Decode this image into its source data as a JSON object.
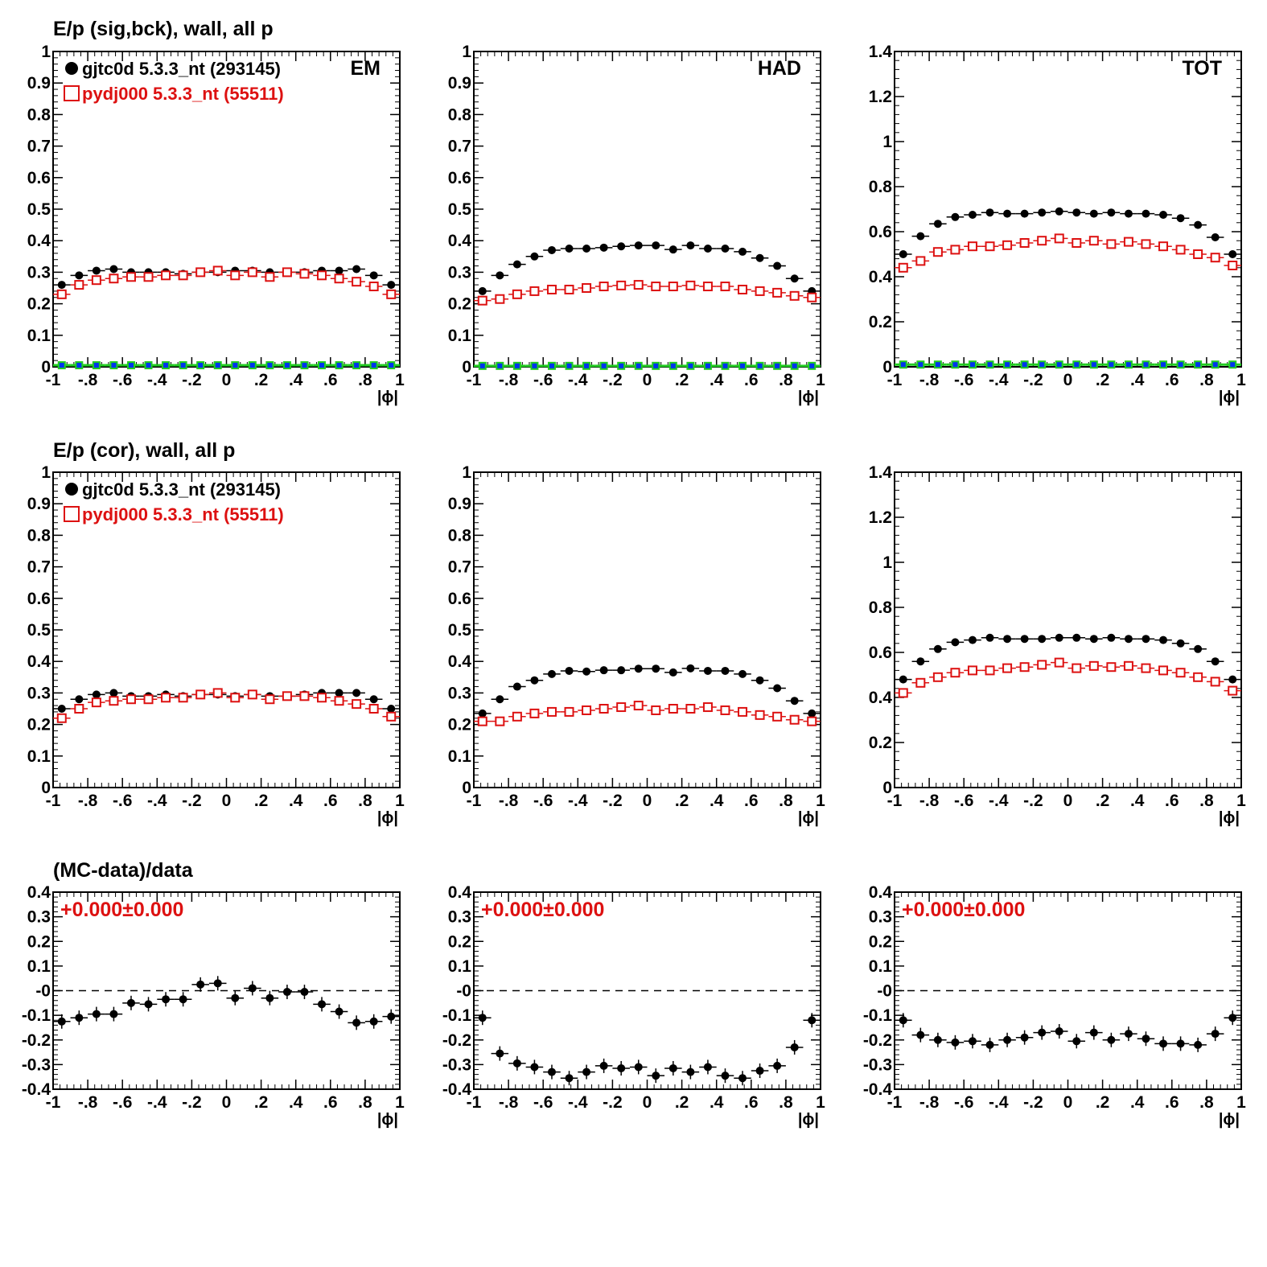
{
  "colors": {
    "data": "#000000",
    "mc": "#dd1111",
    "bkg_fill": "#0033ee",
    "bkg_edge": "#22cc22"
  },
  "rows": [
    {
      "title": "E/p (sig,bck), wall, all p"
    },
    {
      "title": "E/p (cor), wall, all p"
    },
    {
      "title": "(MC-data)/data"
    }
  ],
  "legend": {
    "data_label": "gjtc0d 5.3.3_nt (293145)",
    "mc_label": "pydj000 5.3.3_nt (55511)"
  },
  "fit_label": "+0.000±0.000",
  "xlabel": "|ϕ|",
  "chart_data": [
    {
      "type": "scatter",
      "row": 0,
      "col": 0,
      "corner": "EM",
      "legend": true,
      "xlim": [
        -1,
        1
      ],
      "ylim": [
        0,
        1
      ],
      "x": [
        -0.95,
        -0.85,
        -0.75,
        -0.65,
        -0.55,
        -0.45,
        -0.35,
        -0.25,
        -0.15,
        -0.05,
        0.05,
        0.15,
        0.25,
        0.35,
        0.45,
        0.55,
        0.65,
        0.75,
        0.85,
        0.95
      ],
      "series": [
        {
          "name": "gjtc0d 5.3.3_nt (293145)",
          "style": "data",
          "values": [
            0.26,
            0.29,
            0.305,
            0.31,
            0.3,
            0.3,
            0.3,
            0.295,
            0.3,
            0.3,
            0.305,
            0.305,
            0.3,
            0.3,
            0.3,
            0.305,
            0.305,
            0.31,
            0.29,
            0.26
          ]
        },
        {
          "name": "pydj000 5.3.3_nt (55511)",
          "style": "mc",
          "values": [
            0.23,
            0.26,
            0.275,
            0.28,
            0.285,
            0.285,
            0.29,
            0.29,
            0.3,
            0.305,
            0.29,
            0.3,
            0.285,
            0.3,
            0.295,
            0.29,
            0.28,
            0.27,
            0.255,
            0.23
          ]
        },
        {
          "style": "bkg",
          "values": [
            0.005,
            0.005,
            0.005,
            0.005,
            0.005,
            0.005,
            0.005,
            0.005,
            0.005,
            0.005,
            0.005,
            0.005,
            0.005,
            0.005,
            0.005,
            0.005,
            0.005,
            0.005,
            0.005,
            0.005
          ]
        }
      ]
    },
    {
      "type": "scatter",
      "row": 0,
      "col": 1,
      "corner": "HAD",
      "legend": false,
      "xlim": [
        -1,
        1
      ],
      "ylim": [
        0,
        1
      ],
      "x": [
        -0.95,
        -0.85,
        -0.75,
        -0.65,
        -0.55,
        -0.45,
        -0.35,
        -0.25,
        -0.15,
        -0.05,
        0.05,
        0.15,
        0.25,
        0.35,
        0.45,
        0.55,
        0.65,
        0.75,
        0.85,
        0.95
      ],
      "series": [
        {
          "style": "data",
          "values": [
            0.24,
            0.29,
            0.325,
            0.35,
            0.37,
            0.375,
            0.375,
            0.378,
            0.382,
            0.385,
            0.385,
            0.372,
            0.385,
            0.375,
            0.375,
            0.365,
            0.345,
            0.32,
            0.28,
            0.24
          ]
        },
        {
          "style": "mc",
          "values": [
            0.21,
            0.215,
            0.23,
            0.24,
            0.245,
            0.245,
            0.25,
            0.255,
            0.258,
            0.26,
            0.255,
            0.255,
            0.258,
            0.255,
            0.255,
            0.245,
            0.24,
            0.235,
            0.225,
            0.22
          ]
        },
        {
          "style": "bkg",
          "values": [
            0.003,
            0.003,
            0.003,
            0.003,
            0.003,
            0.003,
            0.003,
            0.003,
            0.003,
            0.003,
            0.003,
            0.003,
            0.003,
            0.003,
            0.003,
            0.003,
            0.003,
            0.003,
            0.003,
            0.003
          ]
        }
      ]
    },
    {
      "type": "scatter",
      "row": 0,
      "col": 2,
      "corner": "TOT",
      "legend": false,
      "xlim": [
        -1,
        1
      ],
      "ylim": [
        0,
        1.4
      ],
      "x": [
        -0.95,
        -0.85,
        -0.75,
        -0.65,
        -0.55,
        -0.45,
        -0.35,
        -0.25,
        -0.15,
        -0.05,
        0.05,
        0.15,
        0.25,
        0.35,
        0.45,
        0.55,
        0.65,
        0.75,
        0.85,
        0.95
      ],
      "series": [
        {
          "style": "data",
          "values": [
            0.5,
            0.58,
            0.635,
            0.665,
            0.675,
            0.685,
            0.68,
            0.68,
            0.685,
            0.69,
            0.685,
            0.68,
            0.685,
            0.68,
            0.68,
            0.675,
            0.66,
            0.63,
            0.575,
            0.5
          ]
        },
        {
          "style": "mc",
          "values": [
            0.44,
            0.47,
            0.51,
            0.52,
            0.535,
            0.535,
            0.54,
            0.55,
            0.56,
            0.57,
            0.55,
            0.56,
            0.545,
            0.555,
            0.545,
            0.535,
            0.52,
            0.5,
            0.485,
            0.45
          ]
        },
        {
          "style": "bkg",
          "values": [
            0.01,
            0.01,
            0.01,
            0.01,
            0.01,
            0.01,
            0.01,
            0.01,
            0.01,
            0.01,
            0.01,
            0.01,
            0.01,
            0.01,
            0.01,
            0.01,
            0.01,
            0.01,
            0.01,
            0.01
          ]
        }
      ]
    },
    {
      "type": "scatter",
      "row": 1,
      "col": 0,
      "corner": "",
      "legend": true,
      "xlim": [
        -1,
        1
      ],
      "ylim": [
        0,
        1
      ],
      "x": [
        -0.95,
        -0.85,
        -0.75,
        -0.65,
        -0.55,
        -0.45,
        -0.35,
        -0.25,
        -0.15,
        -0.05,
        0.05,
        0.15,
        0.25,
        0.35,
        0.45,
        0.55,
        0.65,
        0.75,
        0.85,
        0.95
      ],
      "series": [
        {
          "name": "gjtc0d 5.3.3_nt (293145)",
          "style": "data",
          "values": [
            0.25,
            0.28,
            0.295,
            0.3,
            0.29,
            0.29,
            0.295,
            0.29,
            0.295,
            0.295,
            0.29,
            0.295,
            0.29,
            0.29,
            0.295,
            0.3,
            0.3,
            0.3,
            0.28,
            0.25
          ]
        },
        {
          "name": "pydj000 5.3.3_nt (55511)",
          "style": "mc",
          "values": [
            0.22,
            0.25,
            0.27,
            0.275,
            0.28,
            0.28,
            0.285,
            0.285,
            0.295,
            0.3,
            0.285,
            0.295,
            0.28,
            0.29,
            0.29,
            0.285,
            0.275,
            0.265,
            0.25,
            0.225
          ]
        }
      ]
    },
    {
      "type": "scatter",
      "row": 1,
      "col": 1,
      "corner": "",
      "legend": false,
      "xlim": [
        -1,
        1
      ],
      "ylim": [
        0,
        1
      ],
      "x": [
        -0.95,
        -0.85,
        -0.75,
        -0.65,
        -0.55,
        -0.45,
        -0.35,
        -0.25,
        -0.15,
        -0.05,
        0.05,
        0.15,
        0.25,
        0.35,
        0.45,
        0.55,
        0.65,
        0.75,
        0.85,
        0.95
      ],
      "series": [
        {
          "style": "data",
          "values": [
            0.235,
            0.28,
            0.32,
            0.34,
            0.36,
            0.37,
            0.368,
            0.372,
            0.372,
            0.377,
            0.377,
            0.365,
            0.378,
            0.37,
            0.37,
            0.36,
            0.34,
            0.315,
            0.275,
            0.235
          ]
        },
        {
          "style": "mc",
          "values": [
            0.21,
            0.21,
            0.225,
            0.235,
            0.24,
            0.24,
            0.245,
            0.25,
            0.255,
            0.26,
            0.245,
            0.25,
            0.25,
            0.255,
            0.245,
            0.24,
            0.23,
            0.225,
            0.215,
            0.21
          ]
        }
      ]
    },
    {
      "type": "scatter",
      "row": 1,
      "col": 2,
      "corner": "",
      "legend": false,
      "xlim": [
        -1,
        1
      ],
      "ylim": [
        0,
        1.4
      ],
      "x": [
        -0.95,
        -0.85,
        -0.75,
        -0.65,
        -0.55,
        -0.45,
        -0.35,
        -0.25,
        -0.15,
        -0.05,
        0.05,
        0.15,
        0.25,
        0.35,
        0.45,
        0.55,
        0.65,
        0.75,
        0.85,
        0.95
      ],
      "series": [
        {
          "style": "data",
          "values": [
            0.48,
            0.56,
            0.615,
            0.645,
            0.655,
            0.665,
            0.66,
            0.66,
            0.66,
            0.665,
            0.665,
            0.66,
            0.665,
            0.66,
            0.66,
            0.655,
            0.64,
            0.615,
            0.56,
            0.48
          ]
        },
        {
          "style": "mc",
          "values": [
            0.42,
            0.465,
            0.49,
            0.51,
            0.52,
            0.52,
            0.53,
            0.535,
            0.545,
            0.555,
            0.53,
            0.54,
            0.535,
            0.54,
            0.53,
            0.52,
            0.51,
            0.49,
            0.47,
            0.43
          ]
        }
      ]
    },
    {
      "type": "scatter",
      "row": 2,
      "col": 0,
      "fit": true,
      "xlim": [
        -1,
        1
      ],
      "ylim": [
        -0.4,
        0.4
      ],
      "refline": 0,
      "x": [
        -0.95,
        -0.85,
        -0.75,
        -0.65,
        -0.55,
        -0.45,
        -0.35,
        -0.25,
        -0.15,
        -0.05,
        0.05,
        0.15,
        0.25,
        0.35,
        0.45,
        0.55,
        0.65,
        0.75,
        0.85,
        0.95
      ],
      "series": [
        {
          "style": "ratio",
          "values": [
            -0.125,
            -0.11,
            -0.095,
            -0.095,
            -0.05,
            -0.055,
            -0.035,
            -0.035,
            0.025,
            0.03,
            -0.03,
            0.01,
            -0.03,
            -0.005,
            -0.005,
            -0.055,
            -0.085,
            -0.13,
            -0.125,
            -0.105
          ]
        }
      ]
    },
    {
      "type": "scatter",
      "row": 2,
      "col": 1,
      "fit": true,
      "xlim": [
        -1,
        1
      ],
      "ylim": [
        -0.4,
        0.4
      ],
      "refline": 0,
      "x": [
        -0.95,
        -0.85,
        -0.75,
        -0.65,
        -0.55,
        -0.45,
        -0.35,
        -0.25,
        -0.15,
        -0.05,
        0.05,
        0.15,
        0.25,
        0.35,
        0.45,
        0.55,
        0.65,
        0.75,
        0.85,
        0.95
      ],
      "series": [
        {
          "style": "ratio",
          "values": [
            -0.11,
            -0.255,
            -0.295,
            -0.31,
            -0.33,
            -0.355,
            -0.33,
            -0.305,
            -0.315,
            -0.31,
            -0.345,
            -0.315,
            -0.33,
            -0.31,
            -0.345,
            -0.355,
            -0.325,
            -0.305,
            -0.23,
            -0.12
          ]
        }
      ]
    },
    {
      "type": "scatter",
      "row": 2,
      "col": 2,
      "fit": true,
      "xlim": [
        -1,
        1
      ],
      "ylim": [
        -0.4,
        0.4
      ],
      "refline": 0,
      "x": [
        -0.95,
        -0.85,
        -0.75,
        -0.65,
        -0.55,
        -0.45,
        -0.35,
        -0.25,
        -0.15,
        -0.05,
        0.05,
        0.15,
        0.25,
        0.35,
        0.45,
        0.55,
        0.65,
        0.75,
        0.85,
        0.95
      ],
      "series": [
        {
          "style": "ratio",
          "values": [
            -0.12,
            -0.18,
            -0.2,
            -0.21,
            -0.205,
            -0.22,
            -0.2,
            -0.19,
            -0.17,
            -0.165,
            -0.205,
            -0.17,
            -0.2,
            -0.175,
            -0.195,
            -0.215,
            -0.215,
            -0.22,
            -0.175,
            -0.11
          ]
        }
      ]
    }
  ]
}
